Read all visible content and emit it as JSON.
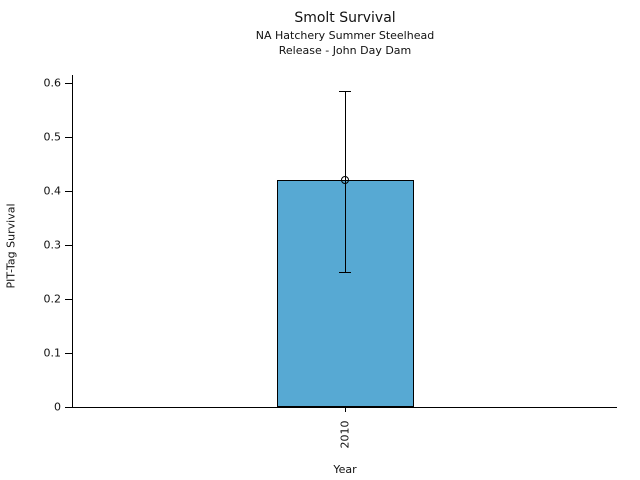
{
  "chart_data": {
    "type": "bar",
    "title": "Smolt Survival",
    "subtitle_lines": [
      "NA Hatchery Summer Steelhead",
      "Release - John Day Dam"
    ],
    "xlabel": "Year",
    "ylabel": "PIT-Tag Survival",
    "categories": [
      "2010"
    ],
    "values": [
      0.42
    ],
    "error_low": [
      0.25
    ],
    "error_high": [
      0.585
    ],
    "ylim": [
      0,
      0.615
    ],
    "yticks": [
      0,
      0.1,
      0.2,
      0.3,
      0.4,
      0.5,
      0.6
    ],
    "ytick_labels": [
      "0",
      "0.1",
      "0.2",
      "0.3",
      "0.4",
      "0.5",
      "0.6"
    ],
    "bar_fill": "#57A9D3",
    "bar_edge": "#000000",
    "marker": "open-circle",
    "errorbar_color": "#000000",
    "grid": "off",
    "legend": "none",
    "background": "#ffffff"
  }
}
